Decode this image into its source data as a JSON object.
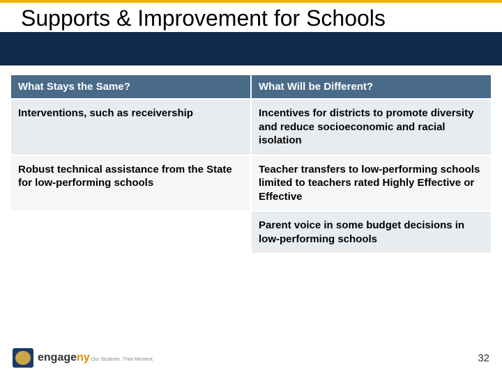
{
  "accent_color": "#f0b400",
  "title_band_color": "#0f2a4a",
  "title": "Supports & Improvement for Schools",
  "table": {
    "header_bg": "#4a6a8a",
    "header_color": "#ffffff",
    "row_alt_a": "#e9ecef",
    "row_alt_b": "#f5f6f7",
    "columns": [
      "What Stays the Same?",
      "What Will be Different?"
    ],
    "rows": [
      [
        "Interventions, such as receivership",
        "Incentives for districts to promote diversity and reduce socioeconomic and racial isolation"
      ],
      [
        "Robust technical assistance from the State for low-performing schools",
        "Teacher transfers to low-performing schools limited to teachers rated Highly Effective or Effective"
      ],
      [
        "",
        "Parent voice in some budget decisions in low-performing schools"
      ]
    ]
  },
  "footer": {
    "logo_text_a": "engage",
    "logo_text_b": "ny",
    "logo_tagline": "Our Students. Their Moment.",
    "page_number": "32"
  }
}
